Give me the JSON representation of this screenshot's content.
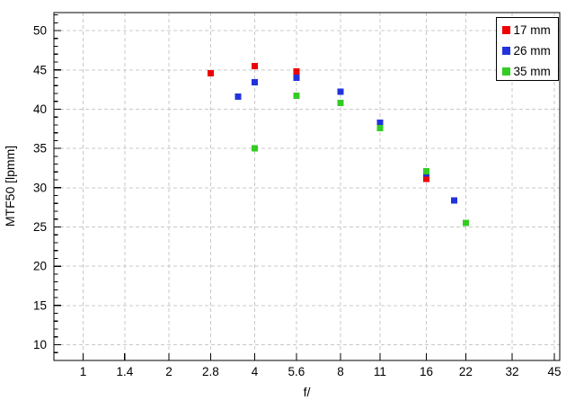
{
  "chart_data": {
    "type": "scatter",
    "title": "",
    "xlabel": "f/",
    "ylabel": "MTF50 [lpmm]",
    "x_scale": "log2",
    "x_ticks": [
      "1",
      "1.4",
      "2",
      "2.8",
      "4",
      "5.6",
      "8",
      "11",
      "16",
      "22",
      "32",
      "45"
    ],
    "x_tick_values": [
      1,
      1.4,
      2,
      2.8,
      4,
      5.6,
      8,
      11,
      16,
      22,
      32,
      45
    ],
    "y_ticks": [
      10,
      15,
      20,
      25,
      30,
      35,
      40,
      45,
      50
    ],
    "y_minor_step": 1,
    "xlim": [
      0.79,
      47.0
    ],
    "ylim": [
      8.0,
      52.3
    ],
    "grid": "dashed",
    "grid_color": "#c8c8c8",
    "axis_color": "#000000",
    "marker": "square",
    "legend_position": "top-right",
    "series": [
      {
        "name": "17 mm",
        "color": "#ee0000",
        "points": [
          [
            2.8,
            44.6
          ],
          [
            4,
            45.5
          ],
          [
            5.6,
            44.8
          ],
          [
            16,
            31.1
          ]
        ]
      },
      {
        "name": "26 mm",
        "color": "#2233dd",
        "points": [
          [
            3.5,
            41.6
          ],
          [
            4,
            43.4
          ],
          [
            5.6,
            44.0
          ],
          [
            8,
            42.2
          ],
          [
            11,
            38.3
          ],
          [
            16,
            31.8
          ],
          [
            20,
            28.4
          ]
        ]
      },
      {
        "name": "35 mm",
        "color": "#33cc22",
        "points": [
          [
            4,
            35.0
          ],
          [
            5.6,
            41.7
          ],
          [
            8,
            40.8
          ],
          [
            11,
            37.6
          ],
          [
            16,
            32.1
          ],
          [
            22,
            25.5
          ]
        ]
      }
    ]
  }
}
